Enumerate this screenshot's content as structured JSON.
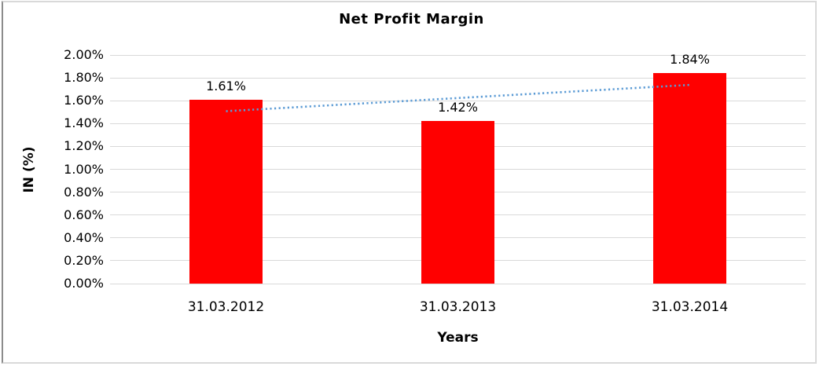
{
  "chart_data": {
    "type": "bar",
    "title": "Net Profit Margin",
    "xlabel": "Years",
    "ylabel": "IN (%)",
    "categories": [
      "31.03.2012",
      "31.03.2013",
      "31.03.2014"
    ],
    "values": [
      1.61,
      1.42,
      1.84
    ],
    "data_labels": [
      "1.61%",
      "1.42%",
      "1.84%"
    ],
    "yticks": [
      "0.00%",
      "0.20%",
      "0.40%",
      "0.60%",
      "0.80%",
      "1.00%",
      "1.20%",
      "1.40%",
      "1.60%",
      "1.80%",
      "2.00%"
    ],
    "ytick_step": 0.2,
    "ylim": [
      0,
      2.0
    ],
    "grid": true,
    "legend": false,
    "bar_color": "#ff0000",
    "gridline_color": "#d9d9d9",
    "trendline": {
      "type": "linear",
      "style": "dotted",
      "color": "#5b9bd5",
      "span": "first-to-last-category"
    }
  }
}
